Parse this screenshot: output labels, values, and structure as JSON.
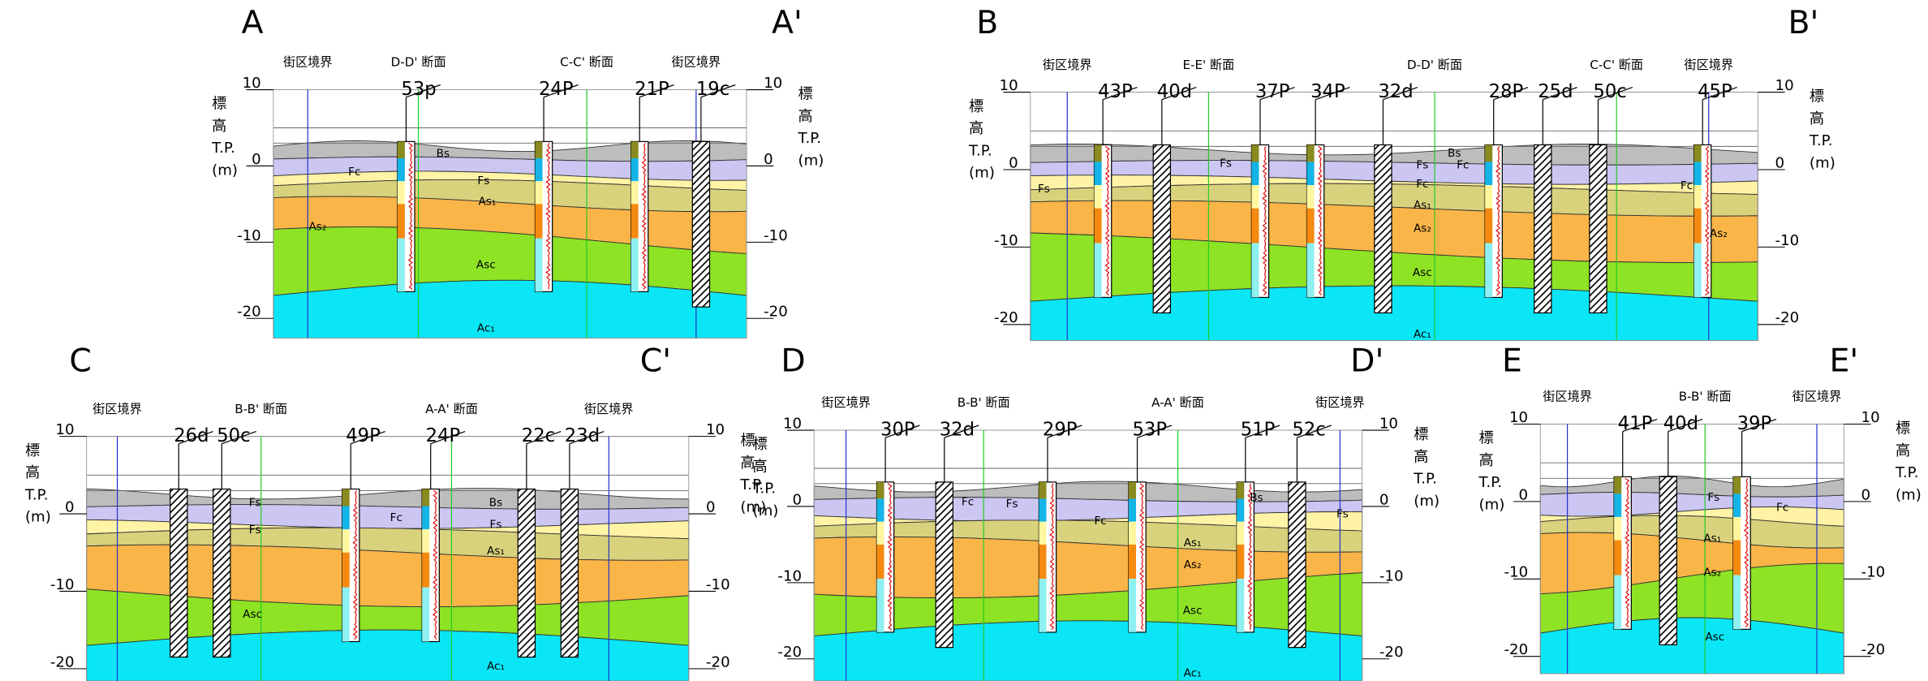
{
  "panels": [
    {
      "start": "A",
      "end": "A'",
      "axis_label": [
        "標",
        "高",
        "T.P.",
        "(m)"
      ],
      "ticks": [
        "10",
        "0",
        "-10",
        "-20"
      ],
      "markers": [
        "街区境界",
        "D-D' 断面",
        "C-C' 断面",
        "街区境界"
      ],
      "borings": [
        "53p",
        "24P",
        "21P",
        "19c"
      ],
      "layers": [
        "Bs",
        "Fc",
        "Fs",
        "As₁",
        "As₂",
        "Asc",
        "Ac₁"
      ]
    },
    {
      "start": "B",
      "end": "B'",
      "axis_label": [
        "標",
        "高",
        "T.P.",
        "(m)"
      ],
      "ticks": [
        "10",
        "0",
        "-10",
        "-20"
      ],
      "markers": [
        "街区境界",
        "E-E' 断面",
        "D-D' 断面",
        "C-C' 断面",
        "街区境界"
      ],
      "borings": [
        "43P",
        "40d",
        "37P",
        "34P",
        "32d",
        "28P",
        "25d",
        "50c",
        "45P"
      ],
      "layers": [
        "Bs",
        "Fs",
        "Fs",
        "Fc",
        "Fc",
        "As₁",
        "As₂",
        "Asc",
        "Ac₁",
        "Fs",
        "Fc",
        "As₂"
      ]
    },
    {
      "start": "C",
      "end": "C'",
      "axis_label": [
        "標",
        "高",
        "T.P.",
        "(m)"
      ],
      "ticks": [
        "10",
        "0",
        "-10",
        "-20"
      ],
      "markers": [
        "街区境界",
        "B-B' 断面",
        "A-A' 断面",
        "街区境界"
      ],
      "borings": [
        "26d",
        "50c",
        "49P",
        "24P",
        "22c",
        "23d"
      ],
      "layers": [
        "Fs",
        "Fs",
        "Bs",
        "Fc",
        "Fs",
        "As₁",
        "Asc",
        "Ac₁"
      ]
    },
    {
      "start": "D",
      "end": "D'",
      "axis_label": [
        "標",
        "高",
        "T.P.",
        "(m)"
      ],
      "ticks": [
        "10",
        "0",
        "-10",
        "-20"
      ],
      "markers": [
        "街区境界",
        "B-B' 断面",
        "A-A' 断面",
        "街区境界"
      ],
      "borings": [
        "30P",
        "32d",
        "29P",
        "53P",
        "51P",
        "52c"
      ],
      "layers": [
        "Fc",
        "Fs",
        "Bs",
        "Fc",
        "Fs",
        "As₁",
        "As₂",
        "Asc",
        "Ac₁"
      ]
    },
    {
      "start": "E",
      "end": "E'",
      "axis_label": [
        "標",
        "高",
        "T.P.",
        "(m)"
      ],
      "ticks": [
        "10",
        "0",
        "-10",
        "-20"
      ],
      "markers": [
        "街区境界",
        "B-B' 断面",
        "街区境界"
      ],
      "borings": [
        "41P",
        "40d",
        "39P"
      ],
      "layers": [
        "Fs",
        "Fc",
        "As₁",
        "As₂",
        "Asc"
      ]
    }
  ]
}
